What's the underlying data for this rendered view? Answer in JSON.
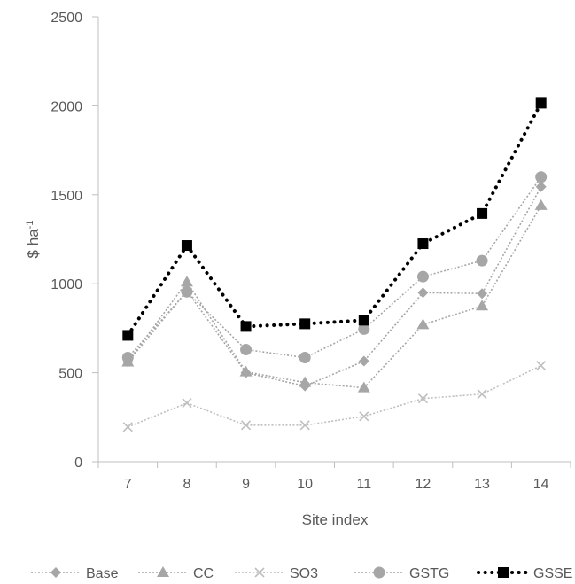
{
  "chart_data": {
    "type": "line",
    "title": "",
    "xlabel": "Site index",
    "ylabel": "$ ha",
    "ylabel_superscript": "-1",
    "categories": [
      "7",
      "8",
      "9",
      "10",
      "11",
      "12",
      "13",
      "14"
    ],
    "ylim": [
      0,
      2500
    ],
    "yticks": [
      "0",
      "500",
      "1000",
      "1500",
      "2000",
      "2500"
    ],
    "grid": false,
    "legend_position": "bottom",
    "series": [
      {
        "name": "Base",
        "marker": "diamond",
        "color": "#a6a6a6",
        "values": [
          560,
          960,
          500,
          425,
          565,
          950,
          945,
          1545
        ]
      },
      {
        "name": "CC",
        "marker": "triangle",
        "color": "#a6a6a6",
        "values": [
          560,
          1010,
          505,
          445,
          415,
          770,
          875,
          1440
        ]
      },
      {
        "name": "SO3",
        "marker": "cross",
        "color": "#bfbfbf",
        "values": [
          195,
          330,
          205,
          205,
          255,
          355,
          380,
          540
        ]
      },
      {
        "name": "GSTG",
        "marker": "circle",
        "color": "#a6a6a6",
        "values": [
          585,
          955,
          630,
          585,
          745,
          1040,
          1130,
          1600
        ]
      },
      {
        "name": "GSSE",
        "marker": "square",
        "color": "#000000",
        "values": [
          710,
          1215,
          760,
          775,
          795,
          1225,
          1395,
          2015
        ]
      }
    ]
  }
}
